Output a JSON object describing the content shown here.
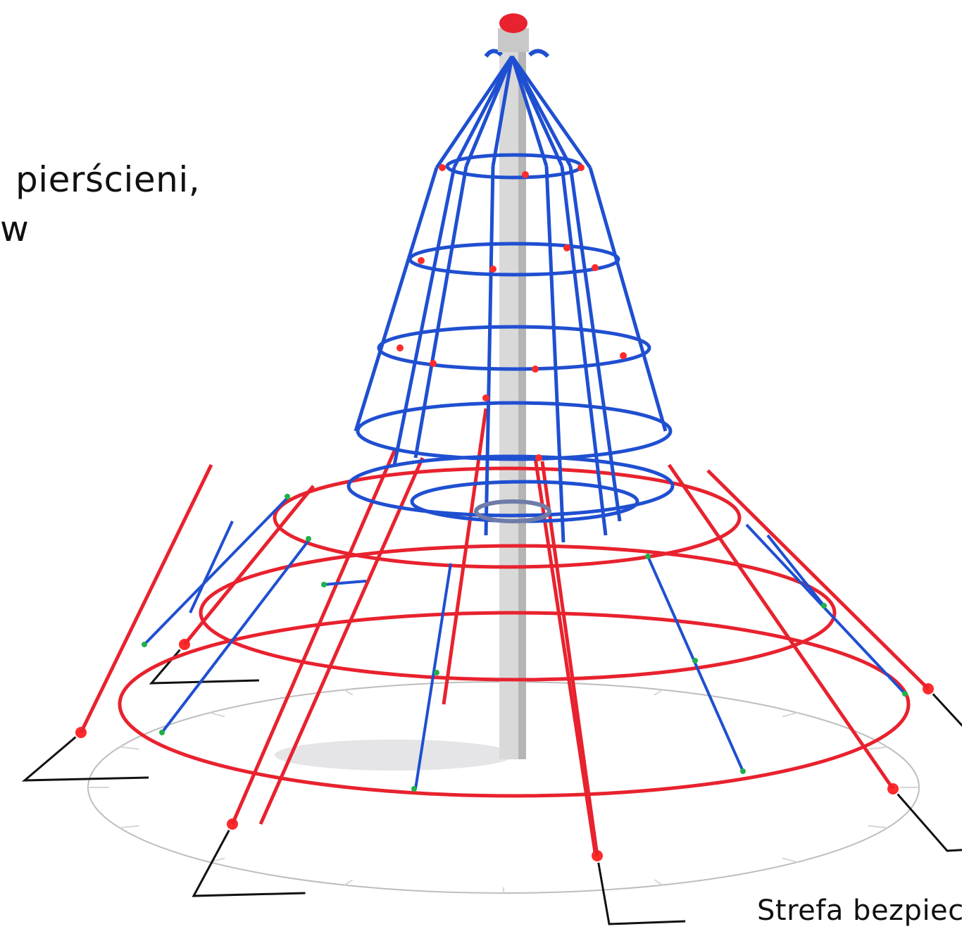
{
  "text": {
    "caption_line_1": "pierścieni,",
    "caption_line_2": "w",
    "zone_caption": "Strefa bezpiec"
  },
  "colors": {
    "blue_rope": "#1f4fd1",
    "red_rope": "#e8222e",
    "mast": "#d9d9d9",
    "mast_shade": "#b5b5b5",
    "top_cap": "#e8222e",
    "connector_red": "#ff2a2a",
    "connector_green": "#1fb14a",
    "anchor": "#111111",
    "zone_line": "#bdbdbd"
  },
  "icons": {
    "structure": "rope-pyramid-icon"
  }
}
